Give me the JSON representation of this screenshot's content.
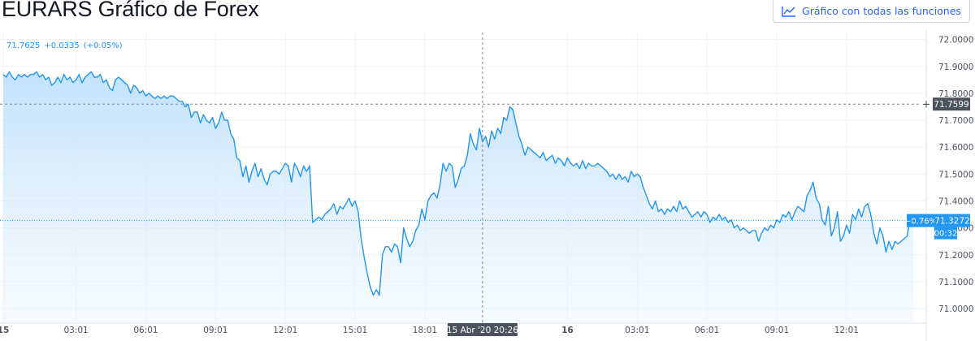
{
  "header": {
    "title": "EURARS Gráfico de Forex",
    "full_chart_label": "Gráfico con todas las funciones",
    "full_chart_icon": "chart-line-icon"
  },
  "legend": {
    "last": "71.7625",
    "change": "+0.0335",
    "change_pct": "(+0.05%)"
  },
  "crosshair": {
    "time_label": "15 Abr '20  20:26",
    "price_label": "71.7599",
    "price": 71.7599,
    "index": 158,
    "plus_icon": "plus-icon"
  },
  "last_price": {
    "change_label": "−0.76%",
    "price_label": "71.3272",
    "price": 71.3272,
    "countdown": "00:32"
  },
  "colors": {
    "line": "#2196f3",
    "area_top": "#bbdefb",
    "grid": "#f0f3fa",
    "axis_text": "#4c525e",
    "crosshair_label_bg": "#4c525e"
  },
  "chart_data": {
    "type": "area",
    "title": "EURARS",
    "ylim": [
      70.97,
      72.02
    ],
    "y_ticks": [
      "72.0000",
      "71.9000",
      "71.8000",
      "71.7000",
      "71.6000",
      "71.5000",
      "71.4000",
      "71.3000",
      "71.2000",
      "71.1000",
      "71.0000"
    ],
    "y_tick_values": [
      72.0,
      71.9,
      71.8,
      71.7,
      71.6,
      71.5,
      71.4,
      71.3,
      71.2,
      71.1,
      71.0
    ],
    "x_ticks": [
      "15",
      "03:01",
      "06:01",
      "09:01",
      "12:01",
      "15:01",
      "18:01",
      "16",
      "03:01",
      "06:01",
      "09:01",
      "12:01"
    ],
    "x_tick_index": [
      0,
      24,
      47,
      70,
      93,
      116,
      139,
      186,
      209,
      232,
      255,
      278
    ],
    "grid": true,
    "series": [
      {
        "values": [
          71.87,
          71.86,
          71.88,
          71.86,
          71.85,
          71.87,
          71.86,
          71.87,
          71.86,
          71.87,
          71.87,
          71.88,
          71.86,
          71.87,
          71.85,
          71.86,
          71.83,
          71.84,
          71.86,
          71.84,
          71.87,
          71.85,
          71.86,
          71.84,
          71.85,
          71.87,
          71.84,
          71.86,
          71.87,
          71.88,
          71.86,
          71.86,
          71.87,
          71.84,
          71.85,
          71.82,
          71.81,
          71.85,
          71.86,
          71.85,
          71.84,
          71.83,
          71.8,
          71.83,
          71.82,
          71.8,
          71.81,
          71.79,
          71.8,
          71.79,
          71.78,
          71.79,
          71.78,
          71.79,
          71.78,
          71.79,
          71.79,
          71.78,
          71.77,
          71.77,
          71.75,
          71.76,
          71.71,
          71.73,
          71.73,
          71.69,
          71.72,
          71.7,
          71.69,
          71.71,
          71.67,
          71.69,
          71.73,
          71.7,
          71.7,
          71.65,
          71.63,
          71.56,
          71.55,
          71.49,
          71.53,
          71.47,
          71.51,
          71.54,
          71.49,
          71.52,
          71.48,
          71.46,
          71.5,
          71.51,
          71.51,
          71.5,
          71.52,
          71.54,
          71.53,
          71.47,
          71.54,
          71.52,
          71.49,
          71.53,
          71.51,
          71.53,
          71.32,
          71.33,
          71.34,
          71.33,
          71.35,
          71.36,
          71.37,
          71.39,
          71.35,
          71.38,
          71.37,
          71.39,
          71.41,
          71.38,
          71.4,
          71.36,
          71.26,
          71.19,
          71.13,
          71.08,
          71.05,
          71.07,
          71.05,
          71.2,
          71.23,
          71.23,
          71.21,
          71.24,
          71.23,
          71.17,
          71.3,
          71.26,
          71.23,
          71.25,
          71.29,
          71.31,
          71.37,
          71.33,
          71.4,
          71.42,
          71.43,
          71.41,
          71.46,
          71.54,
          71.51,
          71.54,
          71.53,
          71.45,
          71.48,
          71.52,
          71.53,
          71.57,
          71.65,
          71.61,
          71.59,
          71.67,
          71.62,
          71.64,
          71.6,
          71.66,
          71.63,
          71.67,
          71.65,
          71.71,
          71.7,
          71.75,
          71.74,
          71.69,
          71.64,
          71.61,
          71.57,
          71.6,
          71.59,
          71.58,
          71.57,
          71.56,
          71.58,
          71.55,
          71.56,
          71.57,
          71.54,
          71.56,
          71.55,
          71.53,
          71.56,
          71.54,
          71.53,
          71.54,
          71.52,
          71.55,
          71.52,
          71.54,
          71.53,
          71.53,
          71.54,
          71.53,
          71.52,
          71.51,
          71.49,
          71.5,
          71.48,
          71.5,
          71.48,
          71.49,
          71.47,
          71.51,
          71.49,
          71.5,
          71.49,
          71.45,
          71.42,
          71.39,
          71.37,
          71.4,
          71.36,
          71.37,
          71.35,
          71.37,
          71.36,
          71.38,
          71.36,
          71.4,
          71.37,
          71.38,
          71.36,
          71.34,
          71.35,
          71.36,
          71.34,
          71.36,
          71.35,
          71.32,
          71.34,
          71.33,
          71.35,
          71.33,
          71.34,
          71.32,
          71.33,
          71.3,
          71.31,
          71.29,
          71.3,
          71.29,
          71.28,
          71.29,
          71.29,
          71.25,
          71.28,
          71.3,
          71.29,
          71.31,
          71.3,
          71.33,
          71.32,
          71.35,
          71.34,
          71.36,
          71.33,
          71.36,
          71.38,
          71.37,
          71.36,
          71.42,
          71.44,
          71.47,
          71.41,
          71.39,
          71.33,
          71.31,
          71.38,
          71.27,
          71.3,
          71.36,
          71.25,
          71.27,
          71.31,
          71.28,
          71.35,
          71.33,
          71.37,
          71.34,
          71.38,
          71.39,
          71.35,
          71.28,
          71.24,
          71.3,
          71.27,
          71.21,
          71.25,
          71.22,
          71.25,
          71.24,
          71.25,
          71.26,
          71.27,
          71.34,
          71.32
        ]
      }
    ]
  }
}
